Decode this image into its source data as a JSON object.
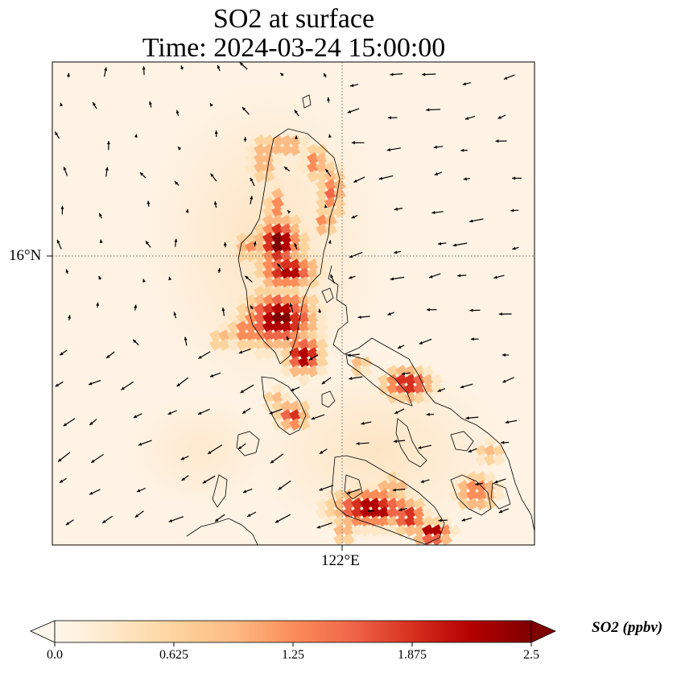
{
  "title": {
    "line1": "SO2 at surface",
    "line2": "Time: 2024-03-24 15:00:00"
  },
  "map": {
    "region": "Luzon, Philippines",
    "grid_lines": "dotted",
    "lat_label": "16°N",
    "lon_label": "122°E"
  },
  "colorbar": {
    "label": "SO2 (ppbv)",
    "colormap": "OrRd",
    "vmin": 0.0,
    "vmax": 2.5,
    "extend": "both",
    "ticks": [
      "0.0",
      "0.625",
      "1.25",
      "1.875",
      "2.5"
    ],
    "colors": [
      "#fff7ec",
      "#fee8c8",
      "#fdd49e",
      "#fdbb84",
      "#fc8d59",
      "#ef6548",
      "#d7301f",
      "#b30000",
      "#7f0000"
    ]
  }
}
